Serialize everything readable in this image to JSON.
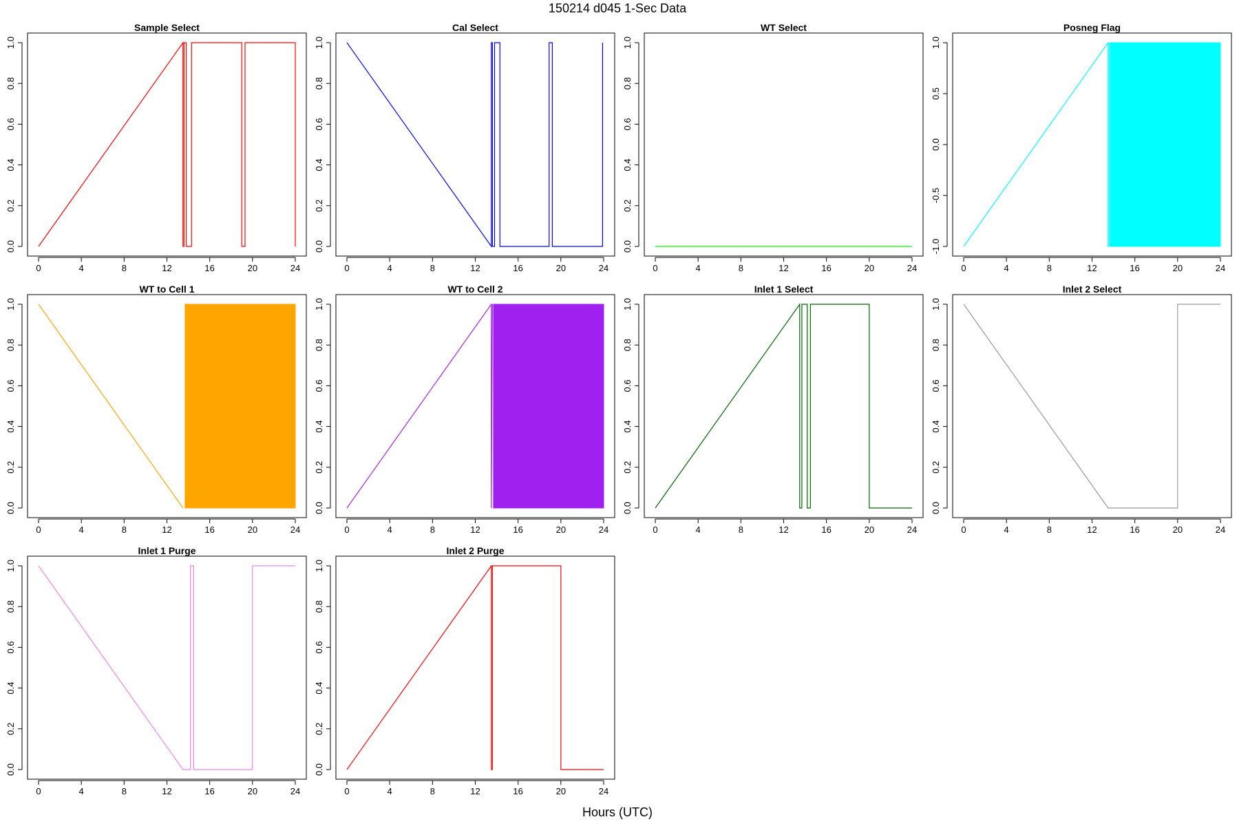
{
  "figure": {
    "title": "150214   d045   1-Sec Data",
    "xlabel": "Hours (UTC)"
  },
  "chart_data": [
    {
      "type": "line",
      "title": "Sample Select",
      "color": "#ff0000",
      "xlim": [
        0,
        24
      ],
      "xticks": [
        "0",
        "4",
        "8",
        "12",
        "16",
        "20",
        "24"
      ],
      "ylim": [
        0,
        1
      ],
      "yticks": [
        "0.0",
        "0.2",
        "0.4",
        "0.6",
        "0.8",
        "1.0"
      ],
      "segments": [
        {
          "kind": "line",
          "x": [
            0,
            13.5,
            13.5,
            13.6,
            13.6,
            13.8,
            13.8,
            14.3,
            14.3,
            19.0,
            19.0,
            19.3,
            19.3,
            24.0,
            24.0
          ],
          "y": [
            0,
            1,
            0,
            0,
            1,
            1,
            0,
            0,
            1,
            1,
            0,
            0,
            1,
            1,
            0
          ]
        }
      ]
    },
    {
      "type": "line",
      "title": "Cal Select",
      "color": "#0000ff",
      "xlim": [
        0,
        24
      ],
      "xticks": [
        "0",
        "4",
        "8",
        "12",
        "16",
        "20",
        "24"
      ],
      "ylim": [
        0,
        1
      ],
      "yticks": [
        "0.0",
        "0.2",
        "0.4",
        "0.6",
        "0.8",
        "1.0"
      ],
      "segments": [
        {
          "kind": "line",
          "x": [
            0,
            13.5,
            13.5,
            13.6,
            13.6,
            13.8,
            13.8,
            14.3,
            14.3,
            18.9,
            18.9,
            19.2,
            19.2,
            23.9,
            23.9
          ],
          "y": [
            1,
            0,
            1,
            1,
            0,
            0,
            1,
            1,
            0,
            0,
            1,
            1,
            0,
            0,
            1
          ]
        }
      ]
    },
    {
      "type": "line",
      "title": "WT Select",
      "color": "#00ff00",
      "xlim": [
        0,
        24
      ],
      "xticks": [
        "0",
        "4",
        "8",
        "12",
        "16",
        "20",
        "24"
      ],
      "ylim": [
        0,
        1
      ],
      "yticks": [
        "0.0",
        "0.2",
        "0.4",
        "0.6",
        "0.8",
        "1.0"
      ],
      "segments": [
        {
          "kind": "line",
          "x": [
            0,
            24
          ],
          "y": [
            0,
            0
          ]
        }
      ]
    },
    {
      "type": "line",
      "title": "Posneg Flag",
      "color": "#00ffff",
      "xlim": [
        0,
        24
      ],
      "xticks": [
        "0",
        "4",
        "8",
        "12",
        "16",
        "20",
        "24"
      ],
      "ylim": [
        -1,
        1
      ],
      "yticks": [
        "-1.0",
        "-0.5",
        "0.0",
        "0.5",
        "1.0"
      ],
      "segments": [
        {
          "kind": "line",
          "x": [
            0,
            13.5,
            13.5,
            13.6,
            13.6
          ],
          "y": [
            -1,
            1,
            -1,
            -1,
            1
          ]
        },
        {
          "kind": "band",
          "x": [
            13.7,
            24.0
          ],
          "y": [
            -1,
            1
          ]
        }
      ]
    },
    {
      "type": "line",
      "title": "WT to Cell 1",
      "color": "#ffa500",
      "xlim": [
        0,
        24
      ],
      "xticks": [
        "0",
        "4",
        "8",
        "12",
        "16",
        "20",
        "24"
      ],
      "ylim": [
        0,
        1
      ],
      "yticks": [
        "0.0",
        "0.2",
        "0.4",
        "0.6",
        "0.8",
        "1.0"
      ],
      "segments": [
        {
          "kind": "line",
          "x": [
            0,
            13.5
          ],
          "y": [
            1,
            0
          ]
        },
        {
          "kind": "band",
          "x": [
            13.7,
            24.0
          ],
          "y": [
            0,
            1
          ]
        }
      ]
    },
    {
      "type": "line",
      "title": "WT to Cell 2",
      "color": "#a020f0",
      "xlim": [
        0,
        24
      ],
      "xticks": [
        "0",
        "4",
        "8",
        "12",
        "16",
        "20",
        "24"
      ],
      "ylim": [
        0,
        1
      ],
      "yticks": [
        "0.0",
        "0.2",
        "0.4",
        "0.6",
        "0.8",
        "1.0"
      ],
      "segments": [
        {
          "kind": "line",
          "x": [
            0,
            13.5,
            13.5,
            13.6
          ],
          "y": [
            0,
            1,
            0,
            1
          ]
        },
        {
          "kind": "band",
          "x": [
            13.7,
            24.0
          ],
          "y": [
            0,
            1
          ]
        }
      ]
    },
    {
      "type": "line",
      "title": "Inlet 1 Select",
      "color": "#006400",
      "xlim": [
        0,
        24
      ],
      "xticks": [
        "0",
        "4",
        "8",
        "12",
        "16",
        "20",
        "24"
      ],
      "ylim": [
        0,
        1
      ],
      "yticks": [
        "0.0",
        "0.2",
        "0.4",
        "0.6",
        "0.8",
        "1.0"
      ],
      "segments": [
        {
          "kind": "line",
          "x": [
            0,
            13.5,
            13.5,
            13.7,
            13.7,
            14.2,
            14.2,
            14.5,
            14.5,
            20.0,
            20.0,
            24.0
          ],
          "y": [
            0,
            1,
            0,
            0,
            1,
            1,
            0,
            0,
            1,
            1,
            0,
            0
          ]
        }
      ]
    },
    {
      "type": "line",
      "title": "Inlet 2 Select",
      "color": "#999999",
      "xlim": [
        0,
        24
      ],
      "xticks": [
        "0",
        "4",
        "8",
        "12",
        "16",
        "20",
        "24"
      ],
      "ylim": [
        0,
        1
      ],
      "yticks": [
        "0.0",
        "0.2",
        "0.4",
        "0.6",
        "0.8",
        "1.0"
      ],
      "segments": [
        {
          "kind": "line",
          "x": [
            0,
            13.5,
            20.0,
            20.0,
            24.0
          ],
          "y": [
            1,
            0,
            0,
            1,
            1
          ]
        }
      ]
    },
    {
      "type": "line",
      "title": "Inlet 1 Purge",
      "color": "#ee82ee",
      "xlim": [
        0,
        24
      ],
      "xticks": [
        "0",
        "4",
        "8",
        "12",
        "16",
        "20",
        "24"
      ],
      "ylim": [
        0,
        1
      ],
      "yticks": [
        "0.0",
        "0.2",
        "0.4",
        "0.6",
        "0.8",
        "1.0"
      ],
      "segments": [
        {
          "kind": "line",
          "x": [
            0,
            13.5,
            14.2,
            14.2,
            14.5,
            14.5,
            20.0,
            20.0,
            24.0
          ],
          "y": [
            1,
            0,
            0,
            1,
            1,
            0,
            0,
            1,
            1
          ]
        }
      ]
    },
    {
      "type": "line",
      "title": "Inlet 2 Purge",
      "color": "#ff0000",
      "xlim": [
        0,
        24
      ],
      "xticks": [
        "0",
        "4",
        "8",
        "12",
        "16",
        "20",
        "24"
      ],
      "ylim": [
        0,
        1
      ],
      "yticks": [
        "0.0",
        "0.2",
        "0.4",
        "0.6",
        "0.8",
        "1.0"
      ],
      "segments": [
        {
          "kind": "line",
          "x": [
            0,
            13.5,
            13.5,
            13.6,
            13.6,
            20.0,
            20.0,
            24.0
          ],
          "y": [
            0,
            1,
            0,
            0,
            1,
            1,
            0,
            0
          ]
        }
      ]
    }
  ]
}
